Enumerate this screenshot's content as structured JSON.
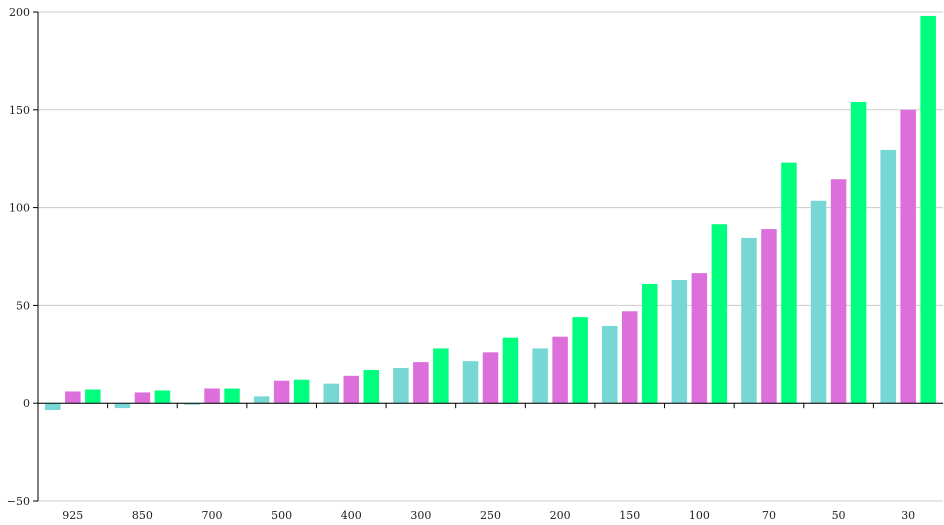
{
  "chart_data": {
    "type": "bar",
    "title": "",
    "xlabel": "",
    "ylabel": "",
    "categories": [
      "925",
      "850",
      "700",
      "500",
      "400",
      "300",
      "250",
      "200",
      "150",
      "100",
      "70",
      "50",
      "30"
    ],
    "series": [
      {
        "color": "#76d7d4",
        "values": [
          -3.5,
          -2.5,
          -0.8,
          3.5,
          10,
          18,
          21.5,
          28,
          39.5,
          63,
          84.5,
          103.5,
          129.5
        ]
      },
      {
        "color": "#dd6fdd",
        "values": [
          6,
          5.5,
          7.5,
          11.5,
          14,
          21,
          26,
          34,
          47,
          66.5,
          89,
          114.5,
          150
        ]
      },
      {
        "color": "#00ff7f",
        "values": [
          7,
          6.5,
          7.5,
          12,
          17,
          28,
          33.5,
          44,
          61,
          91.5,
          123,
          154,
          198
        ]
      }
    ],
    "ylim": [
      -50,
      200
    ],
    "yticks": [
      -50,
      0,
      50,
      100,
      150,
      200
    ],
    "grid": true
  }
}
